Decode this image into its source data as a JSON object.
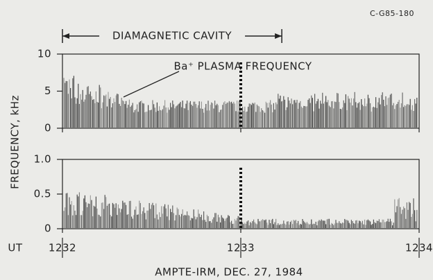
{
  "figure_id": "C-G85-180",
  "chart_data": {
    "type": "spectrogram",
    "xlabel": "AMPTE-IRM, DEC. 27, 1984",
    "x_prefix": "UT",
    "ylabel": "FREQUENCY, kHz",
    "xlim": [
      1232,
      1234
    ],
    "xticks": [
      1232,
      1233,
      1234
    ],
    "cavity": {
      "label": "DIAMAGNETIC CAVITY",
      "range": [
        1232,
        1233.23
      ]
    },
    "plasma_annotation": "Ba⁺ PLASMA FREQUENCY",
    "panels": [
      {
        "ylim": [
          0,
          10
        ],
        "yticks": [
          0,
          5,
          10
        ]
      },
      {
        "ylim": [
          0,
          1
        ],
        "yticks": [
          0,
          0.5,
          {
            "value": 1,
            "label": "1.0"
          }
        ]
      }
    ]
  }
}
